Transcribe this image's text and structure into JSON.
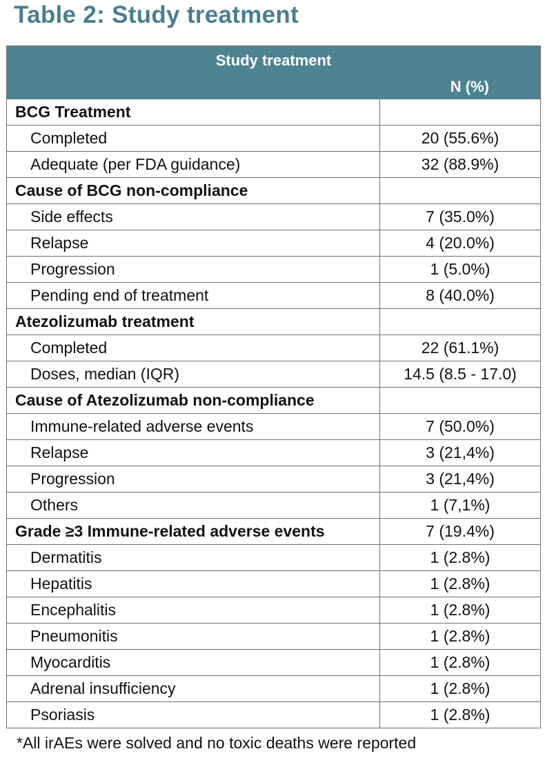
{
  "title": "Table 2: Study treatment",
  "table": {
    "header_title": "Study treatment",
    "header_n": "N (%)",
    "rows": [
      {
        "type": "section",
        "label": "BCG Treatment",
        "value": ""
      },
      {
        "type": "item",
        "label": "Completed",
        "value": "20 (55.6%)"
      },
      {
        "type": "item",
        "label": "Adequate (per FDA guidance)",
        "value": "32 (88.9%)"
      },
      {
        "type": "section",
        "label": "Cause of BCG non-compliance",
        "value": ""
      },
      {
        "type": "item",
        "label": "Side effects",
        "value": "7 (35.0%)"
      },
      {
        "type": "item",
        "label": "Relapse",
        "value": "4 (20.0%)"
      },
      {
        "type": "item",
        "label": "Progression",
        "value": "1 (5.0%)"
      },
      {
        "type": "item",
        "label": "Pending end of treatment",
        "value": "8 (40.0%)"
      },
      {
        "type": "section",
        "label": "Atezolizumab treatment",
        "value": ""
      },
      {
        "type": "item",
        "label": "Completed",
        "value": "22 (61.1%)"
      },
      {
        "type": "item",
        "label": "Doses, median (IQR)",
        "value": "14.5 (8.5 - 17.0)"
      },
      {
        "type": "section",
        "label": "Cause of Atezolizumab non-compliance",
        "value": ""
      },
      {
        "type": "item",
        "label": "Immune-related adverse events",
        "value": "7 (50.0%)"
      },
      {
        "type": "item",
        "label": "Relapse",
        "value": "3 (21,4%)"
      },
      {
        "type": "item",
        "label": "Progression",
        "value": "3 (21,4%)"
      },
      {
        "type": "item",
        "label": "Others",
        "value": "1 (7,1%)"
      },
      {
        "type": "section",
        "label": "Grade ≥3 Immune-related adverse events",
        "value": "7 (19.4%)"
      },
      {
        "type": "item",
        "label": "Dermatitis",
        "value": "1 (2.8%)"
      },
      {
        "type": "item",
        "label": "Hepatitis",
        "value": "1 (2.8%)"
      },
      {
        "type": "item",
        "label": "Encephalitis",
        "value": "1 (2.8%)"
      },
      {
        "type": "item",
        "label": "Pneumonitis",
        "value": "1 (2.8%)"
      },
      {
        "type": "item",
        "label": "Myocarditis",
        "value": "1 (2.8%)"
      },
      {
        "type": "item",
        "label": "Adrenal insufficiency",
        "value": "1 (2.8%)"
      },
      {
        "type": "item",
        "label": "Psoriasis",
        "value": "1 (2.8%)"
      }
    ]
  },
  "footnote": "*All irAEs were solved and no toxic deaths were reported",
  "colors": {
    "title": "#4a7e8f",
    "header_bg": "#4d8393",
    "header_text": "#ffffff",
    "border": "#6f6f6f"
  }
}
